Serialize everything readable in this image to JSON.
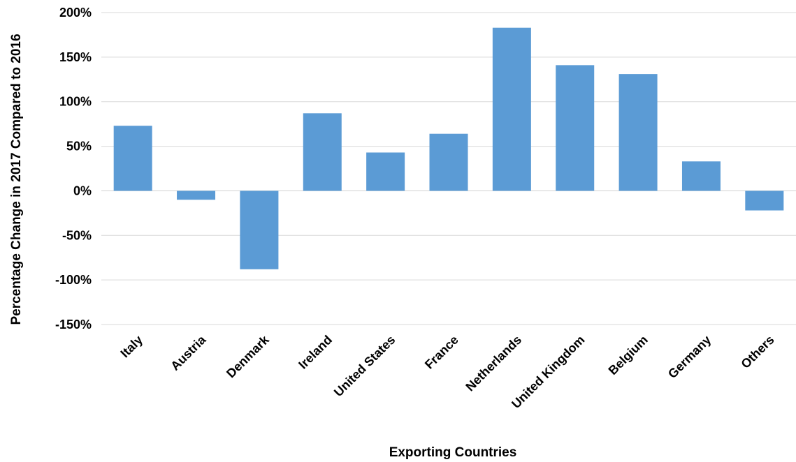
{
  "chart_data": {
    "type": "bar",
    "categories": [
      "Italy",
      "Austria",
      "Denmark",
      "Ireland",
      "United States",
      "France",
      "Netherlands",
      "United Kingdom",
      "Belgium",
      "Germany",
      "Others"
    ],
    "values": [
      73,
      -10,
      -88,
      87,
      43,
      64,
      183,
      141,
      131,
      33,
      -22
    ],
    "ylim": [
      -150,
      200
    ],
    "yticks": [
      "200%",
      "150%",
      "100%",
      "50%",
      "0%",
      "-50%",
      "-100%",
      "-150%"
    ],
    "ytick_values": [
      200,
      150,
      100,
      50,
      0,
      -50,
      -100,
      -150
    ],
    "xlabel": "Exporting Countries",
    "ylabel": "Percentage Change in 2017 Compared to 2016",
    "grid": true,
    "bar_color": "#5b9bd5",
    "grid_color": "#d9d9d9"
  }
}
